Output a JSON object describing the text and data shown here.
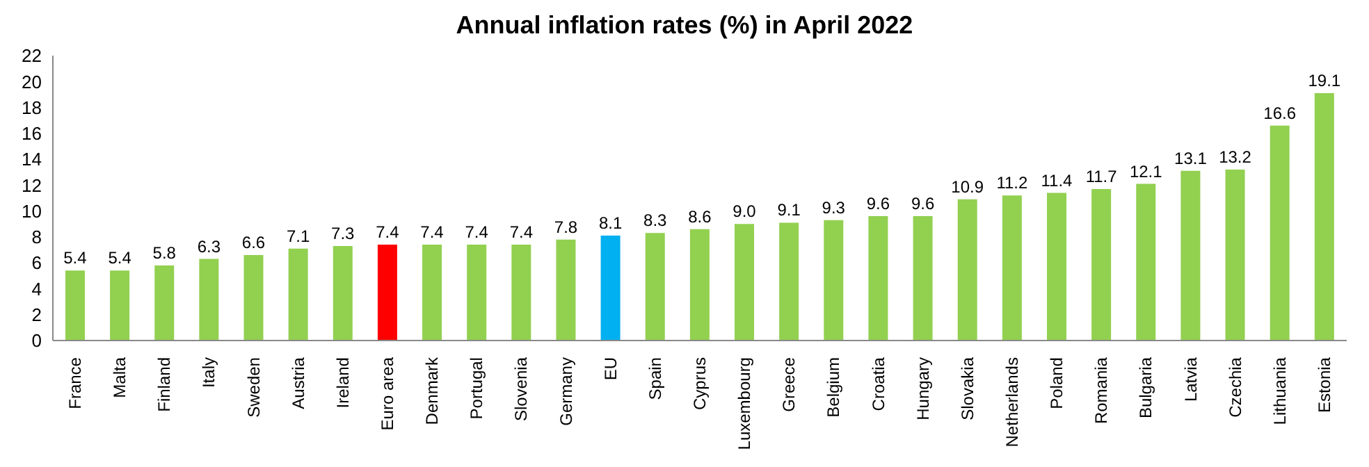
{
  "chart_data": {
    "type": "bar",
    "title": "Annual inflation rates (%) in April 2022",
    "categories": [
      "France",
      "Malta",
      "Finland",
      "Italy",
      "Sweden",
      "Austria",
      "Ireland",
      "Euro area",
      "Denmark",
      "Portugal",
      "Slovenia",
      "Germany",
      "EU",
      "Spain",
      "Cyprus",
      "Luxembourg",
      "Greece",
      "Belgium",
      "Croatia",
      "Hungary",
      "Slovakia",
      "Netherlands",
      "Poland",
      "Romania",
      "Bulgaria",
      "Latvia",
      "Czechia",
      "Lithuania",
      "Estonia"
    ],
    "values": [
      5.4,
      5.4,
      5.8,
      6.3,
      6.6,
      7.1,
      7.3,
      7.4,
      7.4,
      7.4,
      7.4,
      7.8,
      8.1,
      8.3,
      8.6,
      9.0,
      9.1,
      9.3,
      9.6,
      9.6,
      10.9,
      11.2,
      11.4,
      11.7,
      12.1,
      13.1,
      13.2,
      16.6,
      19.1
    ],
    "value_labels": [
      "5.4",
      "5.4",
      "5.8",
      "6.3",
      "6.6",
      "7.1",
      "7.3",
      "7.4",
      "7.4",
      "7.4",
      "7.4",
      "7.8",
      "8.1",
      "8.3",
      "8.6",
      "9.0",
      "9.1",
      "9.3",
      "9.6",
      "9.6",
      "10.9",
      "11.2",
      "11.4",
      "11.7",
      "12.1",
      "13.1",
      "13.2",
      "16.6",
      "19.1"
    ],
    "colors": [
      "#92d050",
      "#92d050",
      "#92d050",
      "#92d050",
      "#92d050",
      "#92d050",
      "#92d050",
      "#ff0000",
      "#92d050",
      "#92d050",
      "#92d050",
      "#92d050",
      "#00b0f0",
      "#92d050",
      "#92d050",
      "#92d050",
      "#92d050",
      "#92d050",
      "#92d050",
      "#92d050",
      "#92d050",
      "#92d050",
      "#92d050",
      "#92d050",
      "#92d050",
      "#92d050",
      "#92d050",
      "#92d050",
      "#92d050"
    ],
    "ylim": [
      0,
      22
    ],
    "yticks": [
      0,
      2,
      4,
      6,
      8,
      10,
      12,
      14,
      16,
      18,
      20,
      22
    ],
    "grid": false,
    "legend": false
  }
}
